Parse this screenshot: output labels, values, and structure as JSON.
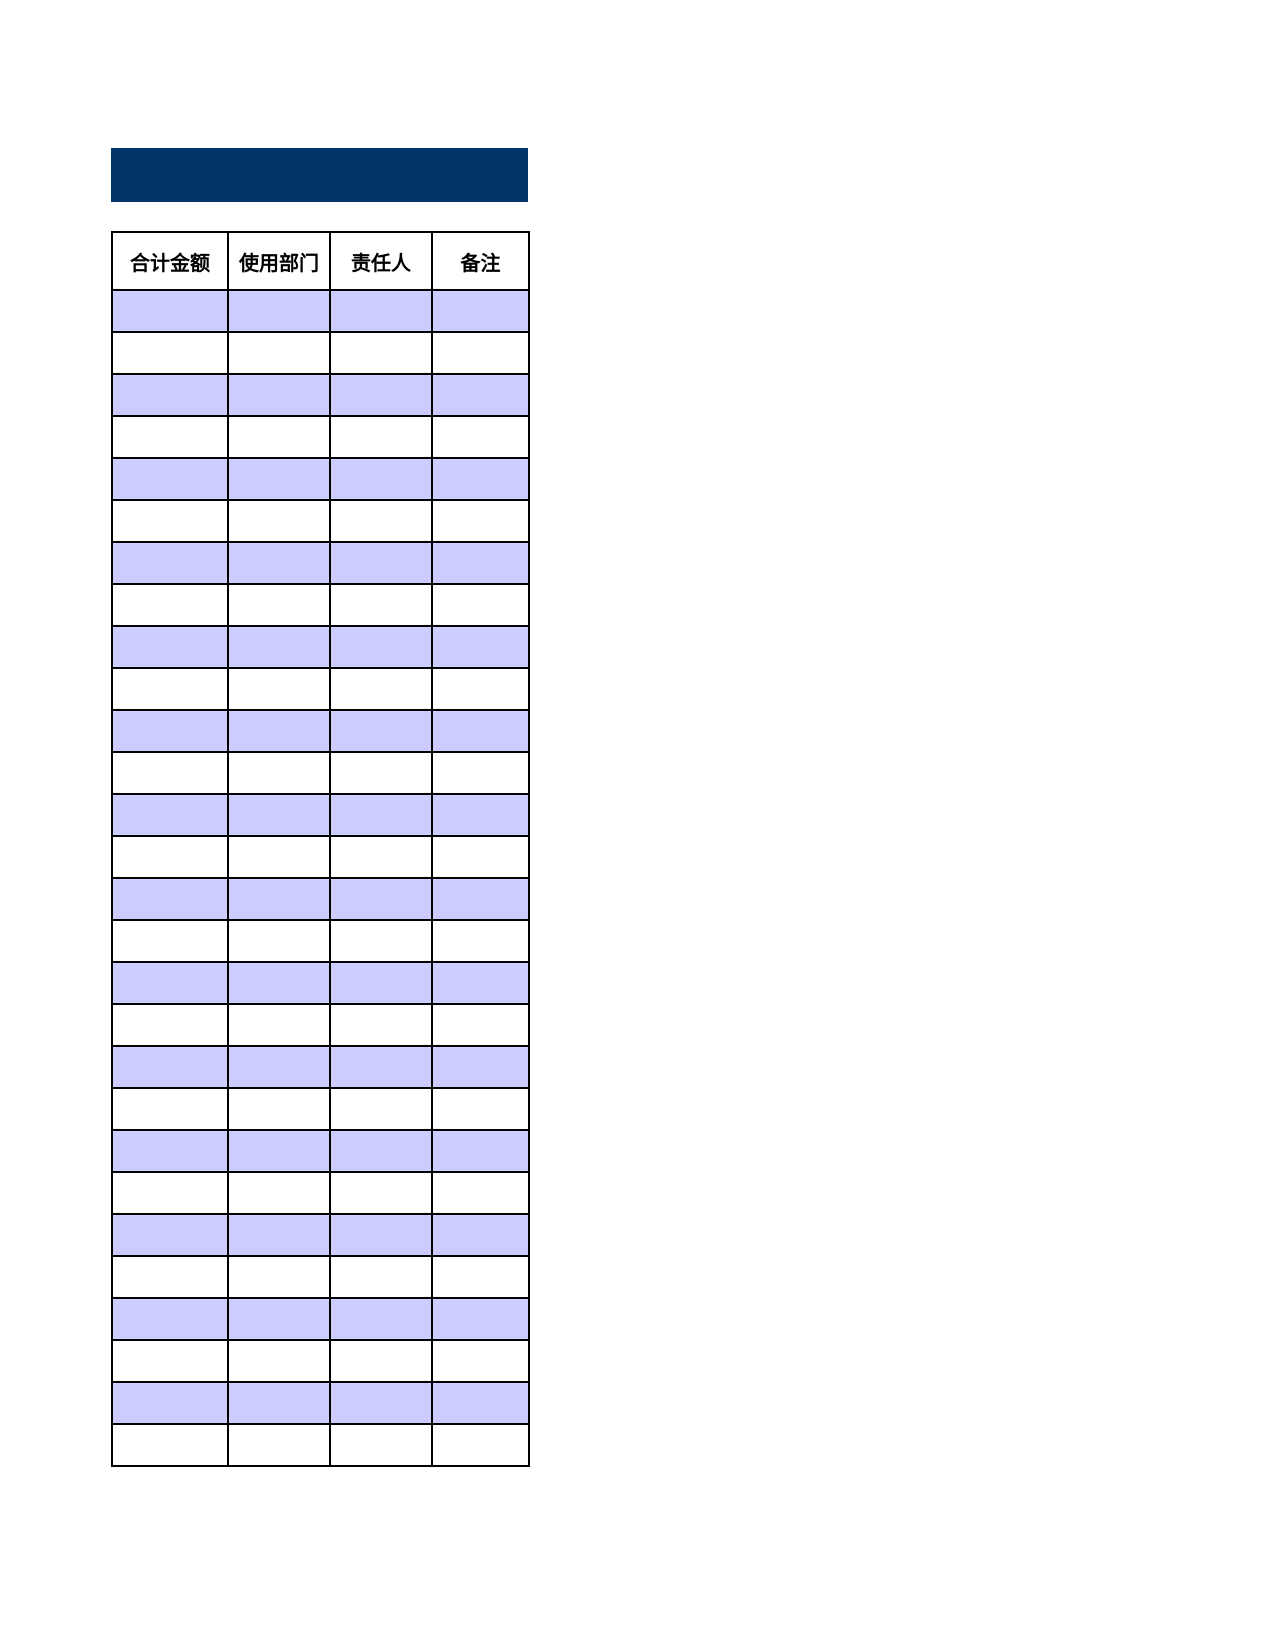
{
  "table": {
    "header": [
      "合计金额",
      "使用部门",
      "责任人",
      "备注"
    ]
  }
}
